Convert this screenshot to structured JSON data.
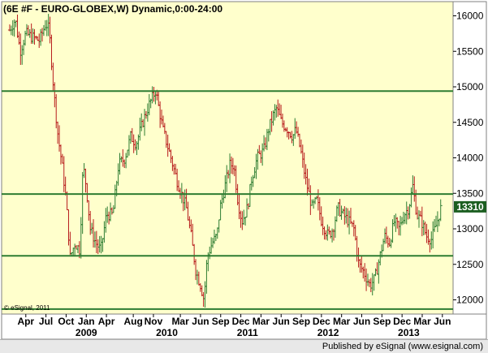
{
  "chart_data": {
    "type": "bar",
    "subtype": "ohlc-weekly-price",
    "title": "(6E #F - EURO-GLOBEX,W) Dynamic,0:00-24:00",
    "xlabel": "",
    "ylabel": "",
    "ylim": [
      11800,
      16200
    ],
    "y_ticks": [
      12000,
      12500,
      13000,
      13500,
      14000,
      14500,
      15000,
      15500,
      16000
    ],
    "x_month_labels": [
      {
        "label": "Apr",
        "t": 2008.25
      },
      {
        "label": "Jul",
        "t": 2008.5
      },
      {
        "label": "Oct",
        "t": 2008.75
      },
      {
        "label": "Jan",
        "t": 2009.0
      },
      {
        "label": "Apr",
        "t": 2009.25
      },
      {
        "label": "Aug",
        "t": 2009.583
      },
      {
        "label": "Nov",
        "t": 2009.833
      },
      {
        "label": "Mar",
        "t": 2010.167
      },
      {
        "label": "Jun",
        "t": 2010.417
      },
      {
        "label": "Sep",
        "t": 2010.667
      },
      {
        "label": "Dec",
        "t": 2010.917
      },
      {
        "label": "Mar",
        "t": 2011.167
      },
      {
        "label": "Jun",
        "t": 2011.417
      },
      {
        "label": "Sep",
        "t": 2011.667
      },
      {
        "label": "Dec",
        "t": 2011.917
      },
      {
        "label": "Mar",
        "t": 2012.167
      },
      {
        "label": "Jun",
        "t": 2012.417
      },
      {
        "label": "Sep",
        "t": 2012.667
      },
      {
        "label": "Dec",
        "t": 2012.917
      },
      {
        "label": "Mar",
        "t": 2013.167
      },
      {
        "label": "Jun",
        "t": 2013.417
      }
    ],
    "x_year_labels": [
      {
        "label": "2009",
        "t": 2009.0
      },
      {
        "label": "2010",
        "t": 2010.0
      },
      {
        "label": "2011",
        "t": 2011.0
      },
      {
        "label": "2012",
        "t": 2012.0
      },
      {
        "label": "2013",
        "t": 2013.0
      }
    ],
    "horizontal_lines": [
      14940,
      13490,
      12620,
      11870
    ],
    "last_price": 13310,
    "last_price_label": "13310",
    "price_path": [
      [
        2008.05,
        15800
      ],
      [
        2008.12,
        15950
      ],
      [
        2008.18,
        15500
      ],
      [
        2008.25,
        15750
      ],
      [
        2008.33,
        15700
      ],
      [
        2008.42,
        15650
      ],
      [
        2008.5,
        15900
      ],
      [
        2008.54,
        15800
      ],
      [
        2008.6,
        14900
      ],
      [
        2008.65,
        14300
      ],
      [
        2008.7,
        13900
      ],
      [
        2008.75,
        13400
      ],
      [
        2008.8,
        12600
      ],
      [
        2008.86,
        12800
      ],
      [
        2008.92,
        12700
      ],
      [
        2008.96,
        13900
      ],
      [
        2009.0,
        13600
      ],
      [
        2009.05,
        13000
      ],
      [
        2009.12,
        12800
      ],
      [
        2009.18,
        12700
      ],
      [
        2009.25,
        13200
      ],
      [
        2009.33,
        13200
      ],
      [
        2009.4,
        13900
      ],
      [
        2009.48,
        14000
      ],
      [
        2009.55,
        14300
      ],
      [
        2009.62,
        14200
      ],
      [
        2009.7,
        14500
      ],
      [
        2009.78,
        14750
      ],
      [
        2009.86,
        14950
      ],
      [
        2009.9,
        14700
      ],
      [
        2009.95,
        14400
      ],
      [
        2010.0,
        14200
      ],
      [
        2010.05,
        14000
      ],
      [
        2010.12,
        13700
      ],
      [
        2010.18,
        13500
      ],
      [
        2010.24,
        13300
      ],
      [
        2010.3,
        12900
      ],
      [
        2010.36,
        12400
      ],
      [
        2010.42,
        12200
      ],
      [
        2010.46,
        12000
      ],
      [
        2010.5,
        12600
      ],
      [
        2010.56,
        12800
      ],
      [
        2010.62,
        12900
      ],
      [
        2010.66,
        13300
      ],
      [
        2010.72,
        13600
      ],
      [
        2010.78,
        13900
      ],
      [
        2010.83,
        13900
      ],
      [
        2010.88,
        13400
      ],
      [
        2010.93,
        13100
      ],
      [
        2011.0,
        13300
      ],
      [
        2011.05,
        13700
      ],
      [
        2011.12,
        14000
      ],
      [
        2011.2,
        14100
      ],
      [
        2011.26,
        14400
      ],
      [
        2011.32,
        14600
      ],
      [
        2011.36,
        14700
      ],
      [
        2011.42,
        14500
      ],
      [
        2011.5,
        14400
      ],
      [
        2011.56,
        14300
      ],
      [
        2011.6,
        14400
      ],
      [
        2011.66,
        14100
      ],
      [
        2011.72,
        13700
      ],
      [
        2011.8,
        13300
      ],
      [
        2011.86,
        13400
      ],
      [
        2011.92,
        13100
      ],
      [
        2012.0,
        12900
      ],
      [
        2012.06,
        13000
      ],
      [
        2012.12,
        13300
      ],
      [
        2012.18,
        13200
      ],
      [
        2012.26,
        13100
      ],
      [
        2012.32,
        13000
      ],
      [
        2012.38,
        12500
      ],
      [
        2012.44,
        12400
      ],
      [
        2012.52,
        12200
      ],
      [
        2012.58,
        12300
      ],
      [
        2012.64,
        12600
      ],
      [
        2012.7,
        12900
      ],
      [
        2012.76,
        12800
      ],
      [
        2012.82,
        13100
      ],
      [
        2012.88,
        13000
      ],
      [
        2012.94,
        13200
      ],
      [
        2013.0,
        13300
      ],
      [
        2013.05,
        13600
      ],
      [
        2013.1,
        13200
      ],
      [
        2013.16,
        13100
      ],
      [
        2013.22,
        12900
      ],
      [
        2013.28,
        12850
      ],
      [
        2013.34,
        13050
      ],
      [
        2013.4,
        13300
      ]
    ],
    "annotations": [
      "© eSignal, 2011"
    ],
    "grid": false,
    "legend": "none"
  },
  "footer": {
    "text": "Published by eSignal (www.esignal.com)"
  },
  "colors": {
    "plot_background": "#ffffcc",
    "level_line": "#2e7d32",
    "bar_up": "#2e7d32",
    "bar_down": "#b71c1c",
    "axis_panel": "#ffffff",
    "last_price_badge": "#1b5e20",
    "last_price_text": "#ffffff"
  }
}
